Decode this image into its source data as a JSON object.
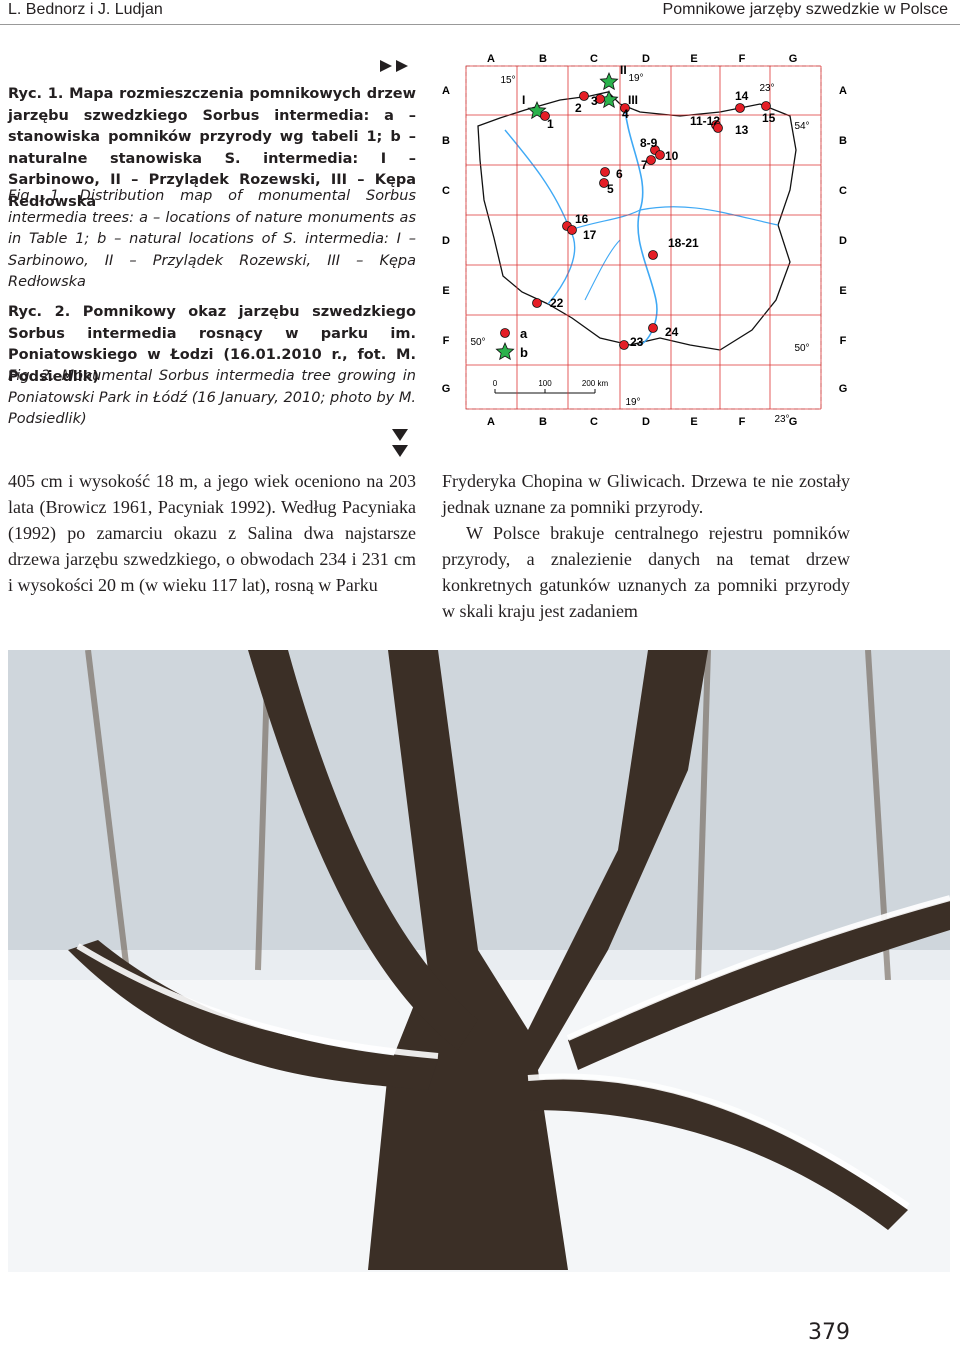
{
  "header": {
    "left": "L. Bednorz i J. Ludjan",
    "right": "Pomnikowe jarzęby szwedzkie w Polsce"
  },
  "figure1": {
    "caption_pl": "Ryc. 1. Mapa rozmieszczenia pomnikowych drzew jarzębu szwedzkiego Sorbus intermedia: a – stanowiska pomników przyrody wg tabeli 1; b – naturalne stanowiska S. intermedia: I – Sarbinowo, II – Przylądek Rozewski, III – Kępa Redłowska",
    "caption_en": "Fig. 1. Distribution map of monumental Sorbus intermedia trees: a – locations of nature monuments as in Table 1; b – natural locations of S. intermedia: I – Sarbinowo, II – Przylądek Rozewski, III – Kępa Redłowska"
  },
  "figure2": {
    "caption_pl": "Ryc. 2. Pomnikowy okaz jarzębu szwedzkiego Sorbus intermedia rosnący w parku im. Poniatowskiego w Łodzi (16.01.2010 r., fot. M. Podsiedlik)",
    "caption_en": "Fig. 2. Monumental Sorbus intermedia tree growing in Poniatowski Park in Łódź (16 January, 2010; photo by M. Podsiedlik)"
  },
  "map": {
    "columns": [
      "A",
      "B",
      "C",
      "D",
      "E",
      "F",
      "G"
    ],
    "rows": [
      "A",
      "B",
      "C",
      "D",
      "E",
      "F",
      "G"
    ],
    "degrees": [
      "15°",
      "19°",
      "23°",
      "54°",
      "50°",
      "50°",
      "19°",
      "23°"
    ],
    "sites": [
      "I",
      "II",
      "III",
      "1",
      "2",
      "3",
      "4",
      "5",
      "6",
      "7",
      "8-9",
      "10",
      "11-12",
      "13",
      "14",
      "15",
      "16",
      "17",
      "18-21",
      "22",
      "23",
      "24"
    ],
    "legend": [
      "a",
      "b"
    ],
    "scale": [
      "0",
      "100",
      "200 km"
    ]
  },
  "body": {
    "left": "405 cm i wysokość 18 m, a jego wiek oceniono na 203 lata (Browicz 1961, Pacyniak 1992). Według Pacyniaka (1992) po zamarciu okazu z Salina dwa najstarsze drzewa jarzębu szwedzkiego, o obwodach 234 i 231 cm i wysokości 20 m (w wieku 117 lat), rosną w Parku",
    "right": [
      "Fryderyka Chopina w Gliwicach. Drzewa te nie zostały jednak uznane za pomniki przyrody.",
      "W Polsce brakuje centralnego rejestru pomników przyrody, a znalezienie danych na temat drzew konkretnych gatunków uznanych za pomniki przyrody w skali kraju jest zadaniem"
    ]
  },
  "page_number": "379"
}
